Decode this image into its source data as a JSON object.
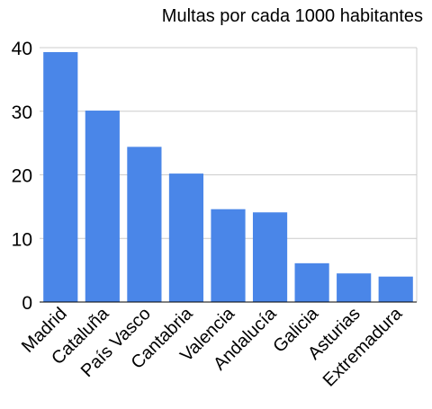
{
  "chart_data": {
    "type": "bar",
    "title": "Multas por cada 1000 habitantes",
    "xlabel": "",
    "ylabel": "",
    "categories": [
      "Madrid",
      "Cataluña",
      "País Vasco",
      "Cantabria",
      "Valencia",
      "Andalucía",
      "Galicia",
      "Asturias",
      "Extremadura"
    ],
    "values": [
      39.3,
      30.1,
      24.4,
      20.2,
      14.6,
      14.1,
      6.1,
      4.5,
      4.0
    ],
    "ylim": [
      0,
      40
    ],
    "yticks": [
      "0",
      "10",
      "20",
      "30",
      "40"
    ],
    "grid": true,
    "legend": "none",
    "colors": {
      "bar": "#4a86e8",
      "grid": "#cccccc",
      "axis": "#000000"
    }
  }
}
